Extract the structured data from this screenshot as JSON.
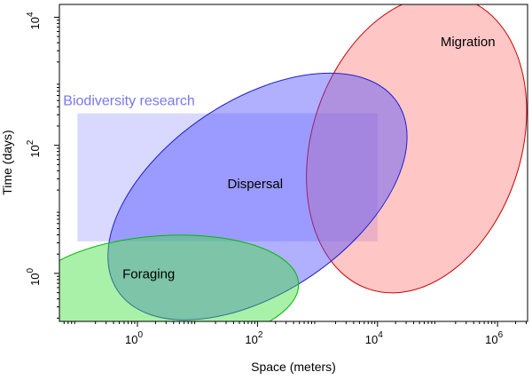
{
  "chart_data": {
    "type": "area",
    "title": "",
    "xlabel": "Space (meters)",
    "ylabel": "Time (days)",
    "x_scale": "log10",
    "y_scale": "log10",
    "xlim_log10": [
      -1.3,
      6.5
    ],
    "ylim_log10": [
      -0.75,
      4.2
    ],
    "grid": false,
    "legend": "none",
    "x_ticks": [
      {
        "exp": 0,
        "base": "10",
        "sup": "0"
      },
      {
        "exp": 2,
        "base": "10",
        "sup": "2"
      },
      {
        "exp": 4,
        "base": "10",
        "sup": "4"
      },
      {
        "exp": 6,
        "base": "10",
        "sup": "6"
      }
    ],
    "y_ticks": [
      {
        "exp": 0,
        "base": "10",
        "sup": "0"
      },
      {
        "exp": 2,
        "base": "10",
        "sup": "2"
      },
      {
        "exp": 4,
        "base": "10",
        "sup": "4"
      }
    ],
    "rectangles": [
      {
        "name": "Biodiversity research",
        "x_log10": [
          -1.0,
          4.0
        ],
        "y_log10": [
          0.5,
          2.5
        ],
        "fill": "#8080ff",
        "opacity": 0.3,
        "label_color": "#7777ee"
      }
    ],
    "ellipses": [
      {
        "name": "Migration",
        "center_log10": [
          4.65,
          2.02
        ],
        "semi_axes_px": [
          118,
          172
        ],
        "rotation_deg": 18,
        "fill": "#ff8080",
        "stroke": "#cc0000",
        "opacity": 0.45
      },
      {
        "name": "Dispersal",
        "center_log10": [
          2.0,
          1.2
        ],
        "semi_axes_px": [
          190,
          108
        ],
        "rotation_deg": -34,
        "fill": "#5050ff",
        "stroke": "#2020cc",
        "opacity": 0.45
      },
      {
        "name": "Foraging",
        "center_log10": [
          0.4,
          -0.3
        ],
        "semi_axes_px": [
          155,
          64
        ],
        "rotation_deg": -4,
        "fill": "#40dd40",
        "stroke": "#00bb00",
        "opacity": 0.45
      }
    ],
    "labels": [
      {
        "text": "Migration",
        "x_log10": 5.05,
        "y_log10": 3.55
      },
      {
        "text": "Dispersal",
        "x_log10": 1.5,
        "y_log10": 1.33
      },
      {
        "text": "Foraging",
        "x_log10": -0.25,
        "y_log10": -0.08
      }
    ]
  }
}
